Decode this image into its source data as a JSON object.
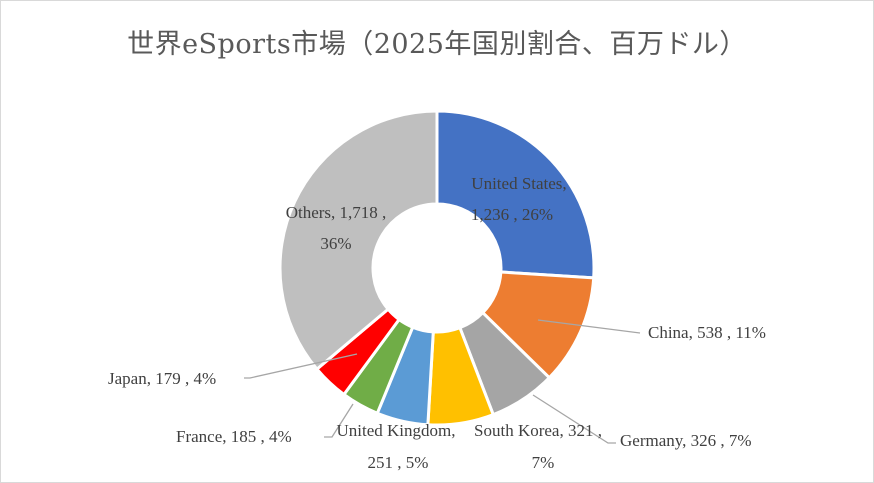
{
  "chart_data": {
    "type": "pie",
    "style": "doughnut",
    "title": "世界eSports市場（2025年国別割合、百万ドル）",
    "start_angle_deg": 0,
    "direction": "clockwise",
    "slices": [
      {
        "name": "United States",
        "value": 1236,
        "percent": "26%",
        "color": "#4472C4",
        "label_line1": "United States,",
        "label_line2": "1,236 , 26%"
      },
      {
        "name": "China",
        "value": 538,
        "percent": "11%",
        "color": "#ED7D31",
        "label_line1": "China, 538 , 11%",
        "label_line2": ""
      },
      {
        "name": "Germany",
        "value": 326,
        "percent": "7%",
        "color": "#A5A5A5",
        "label_line1": "Germany, 326 , 7%",
        "label_line2": ""
      },
      {
        "name": "South Korea",
        "value": 321,
        "percent": "7%",
        "color": "#FFC000",
        "label_line1": "South Korea, 321 ,",
        "label_line2": "7%"
      },
      {
        "name": "United Kingdom",
        "value": 251,
        "percent": "5%",
        "color": "#5B9BD5",
        "label_line1": "United Kingdom,",
        "label_line2": "251 , 5%"
      },
      {
        "name": "France",
        "value": 185,
        "percent": "4%",
        "color": "#70AD47",
        "label_line1": "France, 185 , 4%",
        "label_line2": ""
      },
      {
        "name": "Japan",
        "value": 179,
        "percent": "4%",
        "color": "#FF0000",
        "label_line1": "Japan, 179 , 4%",
        "label_line2": ""
      },
      {
        "name": "Others",
        "value": 1718,
        "percent": "36%",
        "color": "#BFBFBF",
        "label_line1": "Others, 1,718 ,",
        "label_line2": "36%"
      }
    ]
  }
}
